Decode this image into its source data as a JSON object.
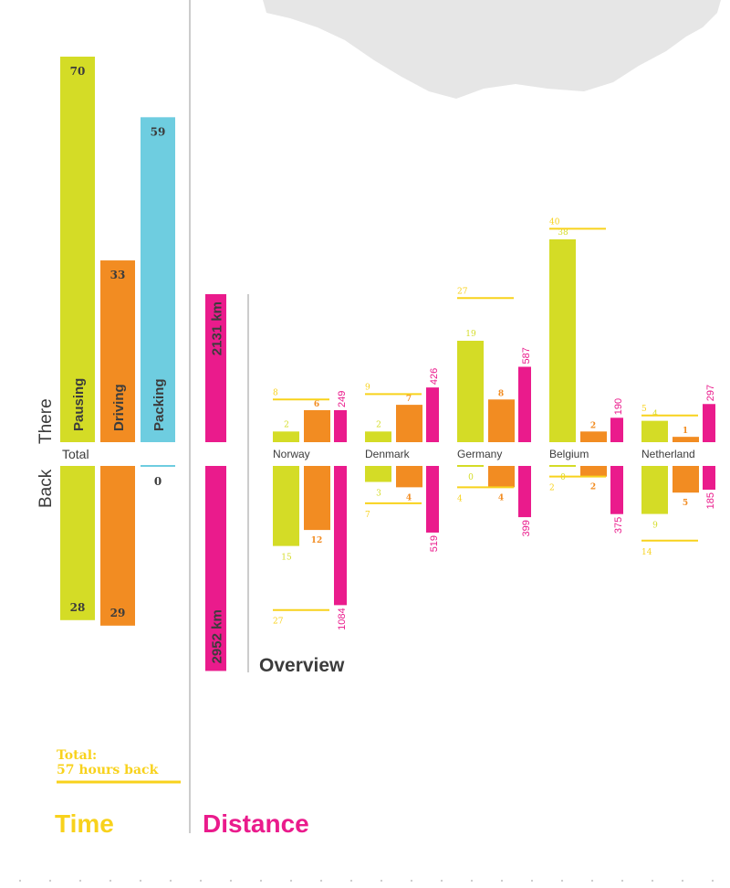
{
  "colors": {
    "pausing": "#d4dc26",
    "driving": "#f28c22",
    "packing": "#6ecde0",
    "distance": "#ea1b8c",
    "max_line": "#f8d21c",
    "dark": "#3c3c3c",
    "map": "#e6e6e6",
    "divider": "#9a9a9a"
  },
  "labels": {
    "there": "There",
    "back": "Back",
    "total": "Total",
    "time_title": "Time",
    "distance_title": "Distance",
    "overview": "Overview",
    "total_back_line1": "Total:",
    "total_back_line2": "57 hours back"
  },
  "chart_data": [
    {
      "type": "bar",
      "name": "Time",
      "units": "hours",
      "categories": [
        "Pausing",
        "Driving",
        "Packing"
      ],
      "series": [
        {
          "name": "There",
          "values": [
            70,
            33,
            59
          ]
        },
        {
          "name": "Back",
          "values": [
            28,
            29,
            0
          ]
        }
      ]
    },
    {
      "type": "bar",
      "name": "Distance",
      "units": "km",
      "series": [
        {
          "name": "There",
          "value": 2131,
          "label": "2131 km"
        },
        {
          "name": "Back",
          "value": 2952,
          "label": "2952 km"
        }
      ]
    },
    {
      "type": "bar",
      "name": "Overview",
      "categories": [
        "Norway",
        "Denmark",
        "Germany",
        "Belgium",
        "Netherland"
      ],
      "series": [
        {
          "name": "Pausing There",
          "values": [
            2,
            2,
            19,
            38,
            4
          ]
        },
        {
          "name": "Driving There",
          "values": [
            6,
            7,
            8,
            2,
            1
          ]
        },
        {
          "name": "Distance There",
          "values": [
            249,
            426,
            587,
            190,
            297
          ]
        },
        {
          "name": "Max There",
          "values": [
            8,
            9,
            27,
            40,
            5
          ]
        },
        {
          "name": "Pausing Back",
          "values": [
            15,
            3,
            0,
            0,
            9
          ]
        },
        {
          "name": "Driving Back",
          "values": [
            12,
            4,
            4,
            2,
            5
          ]
        },
        {
          "name": "Distance Back",
          "values": [
            1084,
            519,
            399,
            375,
            185
          ]
        },
        {
          "name": "Max Back",
          "values": [
            27,
            7,
            4,
            2,
            14
          ]
        }
      ]
    }
  ]
}
